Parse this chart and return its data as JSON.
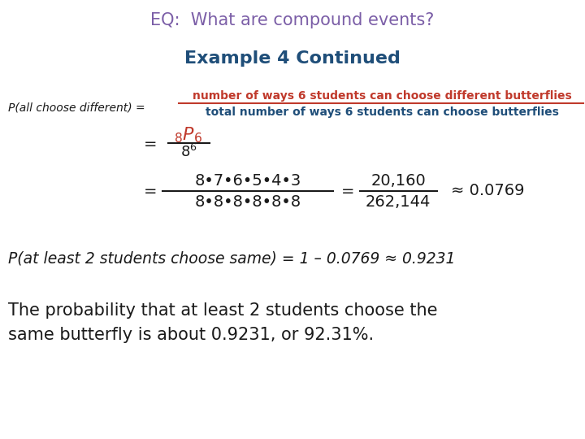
{
  "title": "EQ:  What are compound events?",
  "title_color": "#7B5EA7",
  "title_fontsize": 15,
  "example_heading": "Example 4 Continued",
  "example_heading_color": "#1F4E79",
  "example_heading_fontsize": 16,
  "background_color": "#FFFFFF",
  "red_color": "#C0392B",
  "blue_color": "#1F4E79",
  "dark_color": "#1a1a1a",
  "p_label": "P(all choose different) =",
  "frac_num_text": "number of ways 6 students can choose different butterflies",
  "frac_den_text": "total number of ways 6 students can choose butterflies",
  "p2_label": "P(at least 2 students choose same) = 1 – 0.0769 ≈ 0.9231",
  "conclusion1": "The probability that at least 2 students choose the",
  "conclusion2": "same butterfly is about 0.9231, or 92.31%."
}
